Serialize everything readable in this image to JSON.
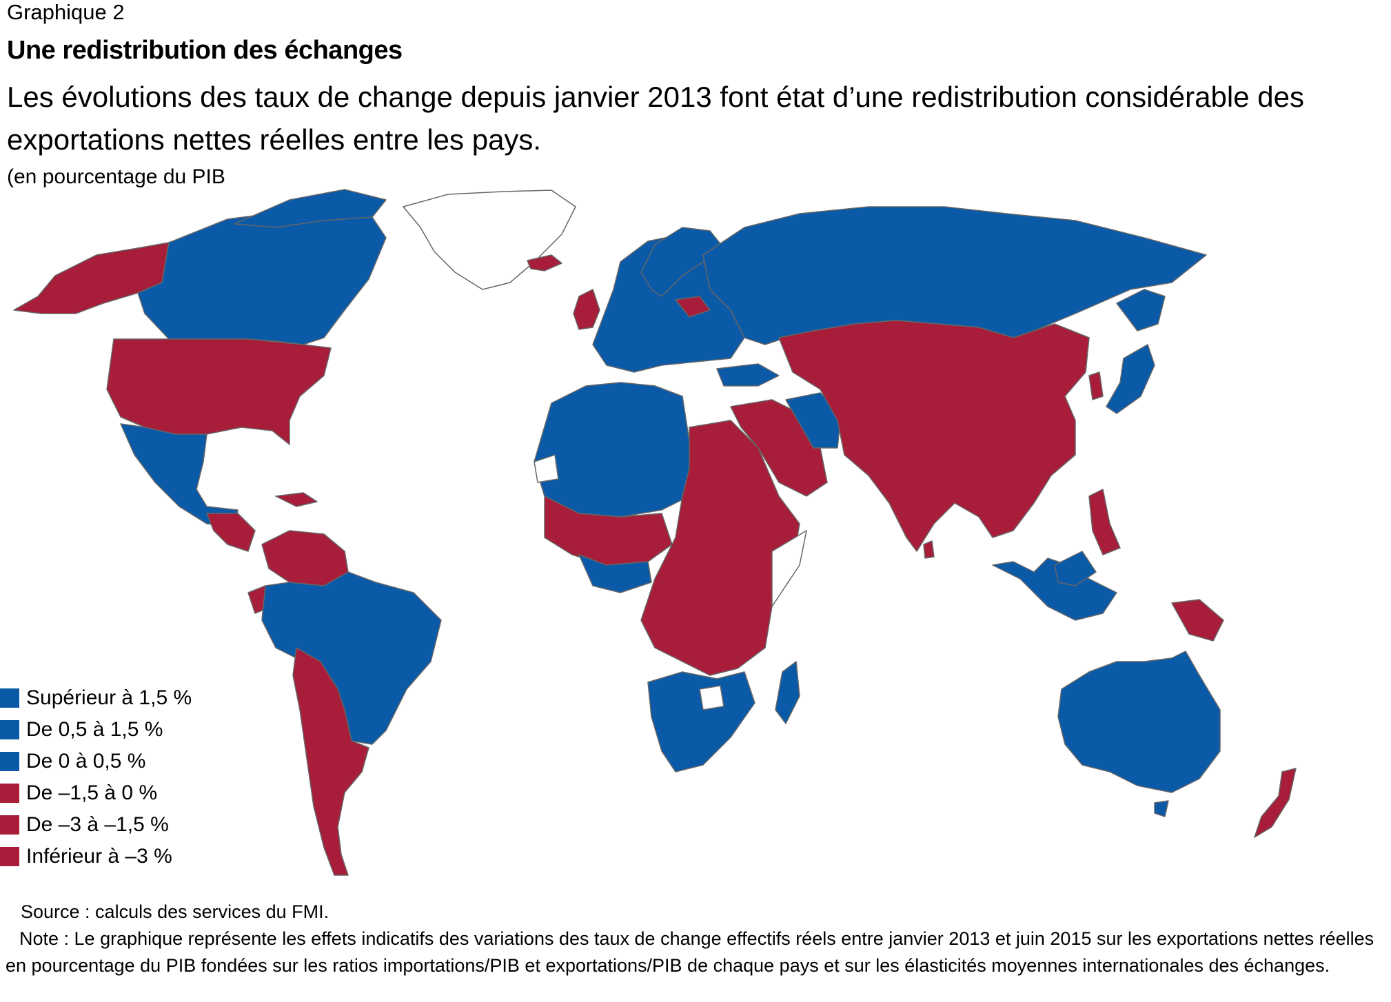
{
  "header": {
    "eyebrow": "Graphique 2",
    "title": "Une redistribution des échanges",
    "subtitle": "Les évolutions des taux de change depuis janvier 2013 font état d’une redistribution considérable des exportations nettes réelles entre les pays.",
    "unit": "(en pourcentage du PIB"
  },
  "colors": {
    "positive": "#0a5aa8",
    "negative": "#a71d3a",
    "no_data": "#ffffff",
    "border": "#666666"
  },
  "legend": {
    "items": [
      {
        "label": "Supérieur à 1,5 %",
        "color": "#0a5aa8"
      },
      {
        "label": "De 0,5 à 1,5 %",
        "color": "#0a5aa8"
      },
      {
        "label": "De 0 à 0,5 %",
        "color": "#0a5aa8"
      },
      {
        "label": "De –1,5 à 0 %",
        "color": "#a71d3a"
      },
      {
        "label": "De –3 à –1,5 %",
        "color": "#a71d3a"
      },
      {
        "label": "Inférieur à –3 %",
        "color": "#a71d3a"
      }
    ]
  },
  "footer": {
    "source": "Source : calculs des services du FMI.",
    "note": "Note : Le graphique représente les effets indicatifs des variations des taux de change effectifs réels entre janvier 2013 et juin 2015 sur les exportations nettes réelles en pourcentage du PIB fondées sur les ratios importations/PIB et exportations/PIB de chaque pays et sur les élasticités moyennes internationales des échanges."
  }
}
